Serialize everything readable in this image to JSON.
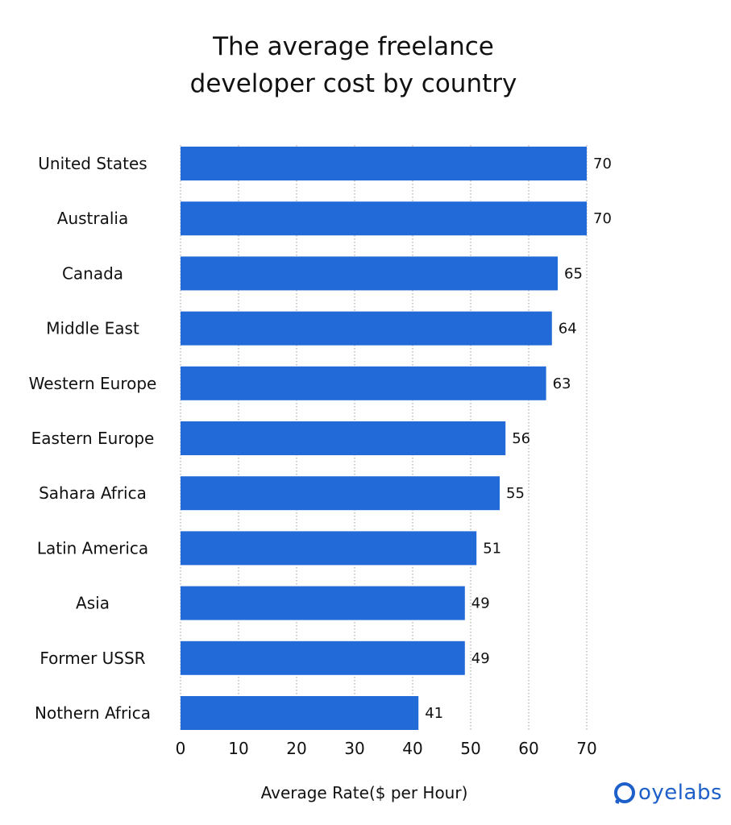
{
  "colors": {
    "bar": "#226ad8",
    "grid": "#9a9a9a",
    "text": "#111111",
    "brand": "#1d5fc9"
  },
  "brand": {
    "name": "oyelabs",
    "icon": "oyelabs-logo-icon"
  },
  "chart_data": {
    "type": "bar",
    "orientation": "horizontal",
    "title": [
      "The average freelance",
      "developer cost by country"
    ],
    "xlabel": "Average Rate($ per Hour)",
    "ylabel": "",
    "xlim": [
      0,
      70
    ],
    "xticks": [
      "0",
      "10",
      "20",
      "30",
      "40",
      "50",
      "60",
      "70"
    ],
    "grid": "vertical dotted",
    "legend": "none",
    "categories": [
      "United States",
      "Australia",
      "Canada",
      "Middle East",
      "Western Europe",
      "Eastern Europe",
      "Sahara Africa",
      "Latin America",
      "Asia",
      "Former USSR",
      "Nothern Africa"
    ],
    "values": [
      70,
      70,
      65,
      64,
      63,
      56,
      55,
      51,
      49,
      49,
      41
    ],
    "labels": [
      "70",
      "70",
      "65",
      "64",
      "63",
      "56",
      "55",
      "51",
      "49",
      "49",
      "41"
    ]
  }
}
